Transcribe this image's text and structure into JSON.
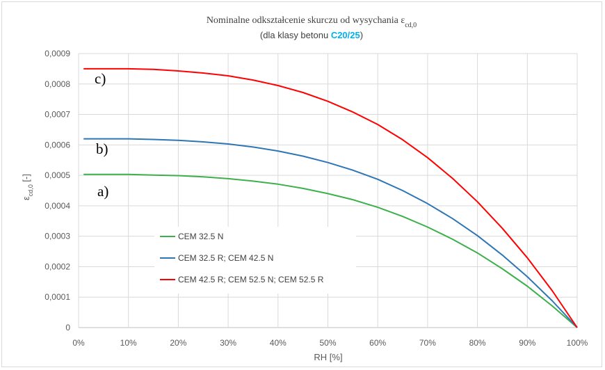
{
  "chart_data": {
    "type": "line",
    "title": "Nominalne odkształcenie skurczu od wysychania ε",
    "title_subscript": "cd,0",
    "subtitle_prefix": "(dla klasy betonu ",
    "subtitle_highlight": "C20/25",
    "subtitle_suffix": ")",
    "xlabel": "RH [%]",
    "ylabel": "ε",
    "ylabel_subscript": "cd,0",
    "ylabel_suffix": " [-]",
    "xlim": [
      0,
      100
    ],
    "ylim": [
      0,
      0.0009
    ],
    "x_ticks": [
      "0%",
      "10%",
      "20%",
      "30%",
      "40%",
      "50%",
      "60%",
      "70%",
      "80%",
      "90%",
      "100%"
    ],
    "y_ticks": [
      "0",
      "0,0001",
      "0,0002",
      "0,0003",
      "0,0004",
      "0,0005",
      "0,0006",
      "0,0007",
      "0,0008",
      "0,0009"
    ],
    "grid": true,
    "legend_position": "center-left",
    "x": [
      1,
      5,
      10,
      15,
      20,
      25,
      30,
      35,
      40,
      45,
      50,
      55,
      60,
      65,
      70,
      75,
      80,
      85,
      90,
      95,
      100
    ],
    "series": [
      {
        "name": "CEM 32.5 N",
        "color": "#3cb04a",
        "values": [
          0.000503,
          0.000503,
          0.000503,
          0.000501,
          0.000499,
          0.000495,
          0.000489,
          0.000481,
          0.000471,
          0.000457,
          0.00044,
          0.00042,
          0.000395,
          0.000365,
          0.00033,
          0.00029,
          0.000245,
          0.000193,
          0.000136,
          7.1e-05,
          0.0
        ]
      },
      {
        "name": "CEM 32.5 R; CEM 42.5 N",
        "color": "#2e75b6",
        "values": [
          0.00062,
          0.00062,
          0.00062,
          0.000618,
          0.000615,
          0.00061,
          0.000603,
          0.000593,
          0.00058,
          0.000563,
          0.000542,
          0.000517,
          0.000487,
          0.00045,
          0.000407,
          0.000358,
          0.000302,
          0.000238,
          0.000167,
          8.8e-05,
          0.0
        ]
      },
      {
        "name": "CEM 42.5 R; CEM 52.5 N; CEM 52.5 R",
        "color": "#ff0000",
        "values": [
          0.00085,
          0.00085,
          0.00085,
          0.000848,
          0.000843,
          0.000836,
          0.000827,
          0.000813,
          0.000795,
          0.000772,
          0.000743,
          0.000708,
          0.000667,
          0.000617,
          0.000558,
          0.00049,
          0.000413,
          0.000326,
          0.000229,
          0.000121,
          0.0
        ]
      }
    ],
    "annotations": [
      "a)",
      "b)",
      "c)"
    ]
  }
}
